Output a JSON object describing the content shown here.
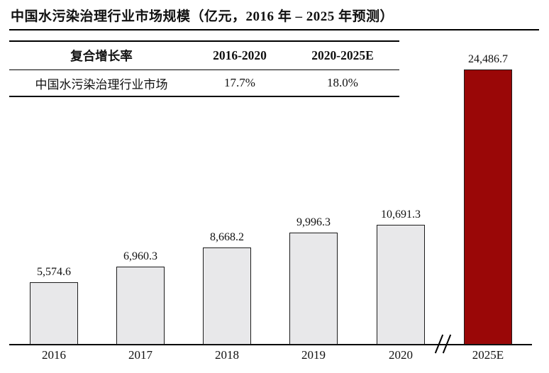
{
  "title": "中国水污染治理行业市场规模（亿元，2016 年 – 2025 年预测）",
  "table": {
    "header": [
      "复合增长率",
      "2016-2020",
      "2020-2025E"
    ],
    "rows": [
      [
        "中国水污染治理行业市场",
        "17.7%",
        "18.0%"
      ]
    ]
  },
  "chart_data": {
    "type": "bar",
    "title": "中国水污染治理行业市场规模（亿元，2016 年 – 2025 年预测）",
    "categories": [
      "2016",
      "2017",
      "2018",
      "2019",
      "2020",
      "2025E"
    ],
    "values": [
      5574.6,
      6960.3,
      8668.2,
      9996.3,
      10691.3,
      24486.7
    ],
    "value_labels": [
      "5,574.6",
      "6,960.3",
      "8,668.2",
      "9,996.3",
      "10,691.3",
      "24,486.7"
    ],
    "bar_colors": [
      "#e8e8ea",
      "#e8e8ea",
      "#e8e8ea",
      "#e8e8ea",
      "#e8e8ea",
      "#9a0707"
    ],
    "highlight_color": "#9a0707",
    "default_bar_color": "#e8e8ea",
    "axis_break_between": [
      "2020",
      "2025E"
    ],
    "axis_break_glyph": "//",
    "xlabel": "",
    "ylabel": "",
    "ylim": [
      0,
      24486.7
    ],
    "grid": false,
    "legend": "none",
    "unit": "亿元"
  }
}
